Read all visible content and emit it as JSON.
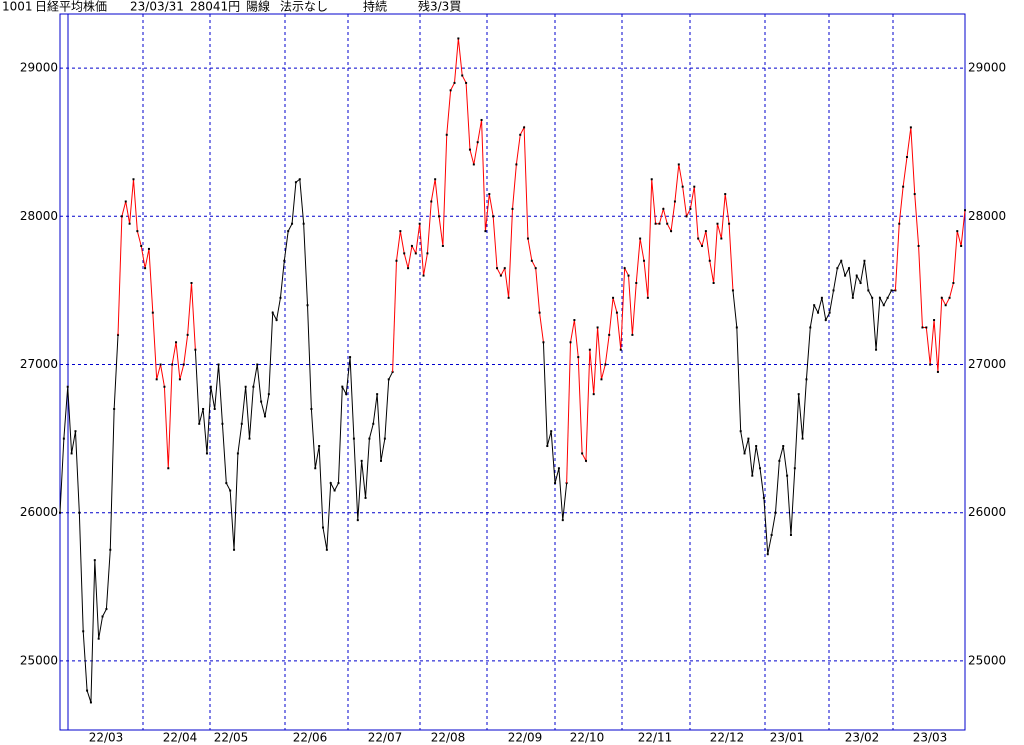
{
  "header": [
    "1001",
    "日経平均株価",
    "23/03/31",
    "28041円",
    "陽線",
    "法示なし",
    "持続",
    "残3/3買"
  ],
  "chart_data": {
    "type": "line",
    "ylim": [
      24534,
      29365
    ],
    "yticks": [
      25000,
      26000,
      27000,
      28000,
      29000
    ],
    "x_labels": [
      "22/03",
      "22/04",
      "22/05",
      "22/06",
      "22/07",
      "22/08",
      "22/09",
      "22/10",
      "22/11",
      "22/12",
      "23/01",
      "23/02",
      "23/03"
    ],
    "grid": true,
    "series": [
      {
        "color": "#000000",
        "values": [
          26000,
          26500,
          26850,
          26400,
          26550,
          26000,
          25200,
          24800,
          24720,
          25680,
          25150,
          25300,
          25350,
          25750,
          26700,
          27200
        ]
      },
      {
        "color": "#ff0000",
        "values": [
          28000,
          28100,
          27950,
          28250,
          27900,
          27800,
          27650,
          27780,
          27350,
          26900,
          27000,
          26850,
          26300,
          27000,
          27150,
          26900,
          27000,
          27200,
          27550,
          27100
        ]
      },
      {
        "color": "#000000",
        "values": [
          26600,
          26700,
          26400,
          26850,
          26700,
          27000,
          26600,
          26200,
          26150,
          25750,
          26400,
          26600,
          26850,
          26500,
          26850,
          27000,
          26750,
          26650,
          26800,
          27350,
          27300,
          27450,
          27700,
          27900,
          27950,
          28230,
          28250,
          27950,
          27400,
          26700,
          26300,
          26450,
          25900,
          25750,
          26200,
          26150,
          26200,
          26850,
          26800,
          27050,
          26500,
          25950,
          26350,
          26100,
          26500,
          26600,
          26800,
          26350,
          26500,
          26900,
          26950
        ]
      },
      {
        "color": "#ff0000",
        "values": [
          27700,
          27900,
          27750,
          27650,
          27800,
          27750,
          27950,
          27600,
          27750,
          28100,
          28250,
          28000,
          27800,
          28550,
          28850,
          28900,
          29200,
          28950,
          28900,
          28450,
          28350,
          28500,
          28650,
          27900,
          28150,
          28000,
          27650,
          27600,
          27650,
          27450,
          28050,
          28350,
          28550,
          28600,
          27850,
          27700,
          27650,
          27350,
          27150
        ]
      },
      {
        "color": "#000000",
        "values": [
          26450,
          26550,
          26200,
          26300,
          25950,
          26200
        ]
      },
      {
        "color": "#ff0000",
        "values": [
          27150,
          27300,
          27050,
          26400,
          26350,
          27100,
          26800,
          27250,
          26900,
          27000,
          27200,
          27450,
          27350,
          27100,
          27650,
          27600,
          27200,
          27550,
          27850,
          27700,
          27450,
          28250,
          27950,
          27950,
          28050,
          27950,
          27900,
          28100,
          28350,
          28200,
          28000,
          28050,
          28200,
          27850,
          27800,
          27900,
          27700,
          27550,
          27950,
          27850,
          28150,
          27950,
          27500
        ]
      },
      {
        "color": "#000000",
        "values": [
          27250,
          26550,
          26400,
          26500,
          26250,
          26450,
          26300,
          26100,
          25720,
          25850,
          26000,
          26350,
          26450,
          26250,
          25850,
          26300,
          26800,
          26500,
          26900,
          27250,
          27400,
          27350,
          27450,
          27300,
          27350,
          27500,
          27650,
          27700,
          27600,
          27650,
          27450,
          27600,
          27550,
          27700,
          27500,
          27450,
          27100,
          27450,
          27400,
          27450,
          27500,
          27500
        ]
      },
      {
        "color": "#ff0000",
        "values": [
          27950,
          28200,
          28400,
          28600,
          28150,
          27800,
          27250,
          27250,
          27000,
          27300,
          26950,
          27450,
          27400,
          27450,
          27550,
          27900,
          27800,
          28041
        ]
      }
    ]
  }
}
